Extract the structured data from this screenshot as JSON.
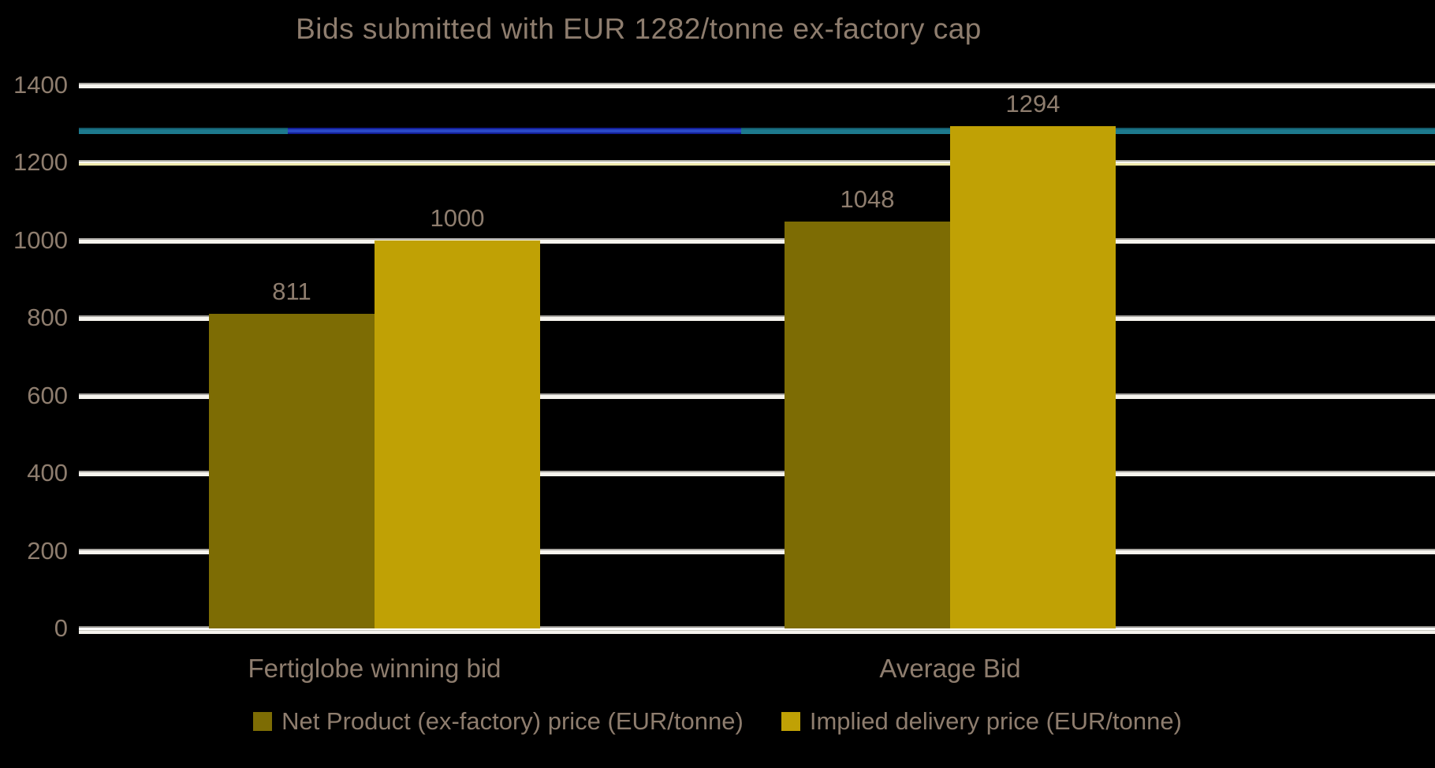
{
  "title": "Bids submitted with EUR 1282/tonne ex-factory cap",
  "chart_data": {
    "type": "bar",
    "title": "Bids submitted with EUR 1282/tonne ex-factory cap",
    "categories": [
      "Fertiglobe winning bid",
      "Average Bid"
    ],
    "series": [
      {
        "name": "Net Product (ex-factory) price (EUR/tonne)",
        "color": "#7d6c04",
        "values": [
          811,
          1048
        ],
        "data_labels": [
          "811",
          "1048"
        ]
      },
      {
        "name": "Implied delivery price (EUR/tonne)",
        "color": "#c0a105",
        "values": [
          1000,
          1294
        ],
        "data_labels": [
          "1000",
          "1294"
        ]
      }
    ],
    "cap_line": {
      "value": 1282,
      "color": "#1d7a8e",
      "segment_color": "#2a49c8"
    },
    "y_axis": {
      "min": 0,
      "max": 1400,
      "step": 200,
      "ticks": [
        "0",
        "200",
        "400",
        "600",
        "800",
        "1000",
        "1200",
        "1400"
      ]
    },
    "grid": true,
    "gridline_color": "#f6f4ee",
    "legend_position": "bottom",
    "background_color": "#000000",
    "text_color": "#8e7d6e"
  }
}
